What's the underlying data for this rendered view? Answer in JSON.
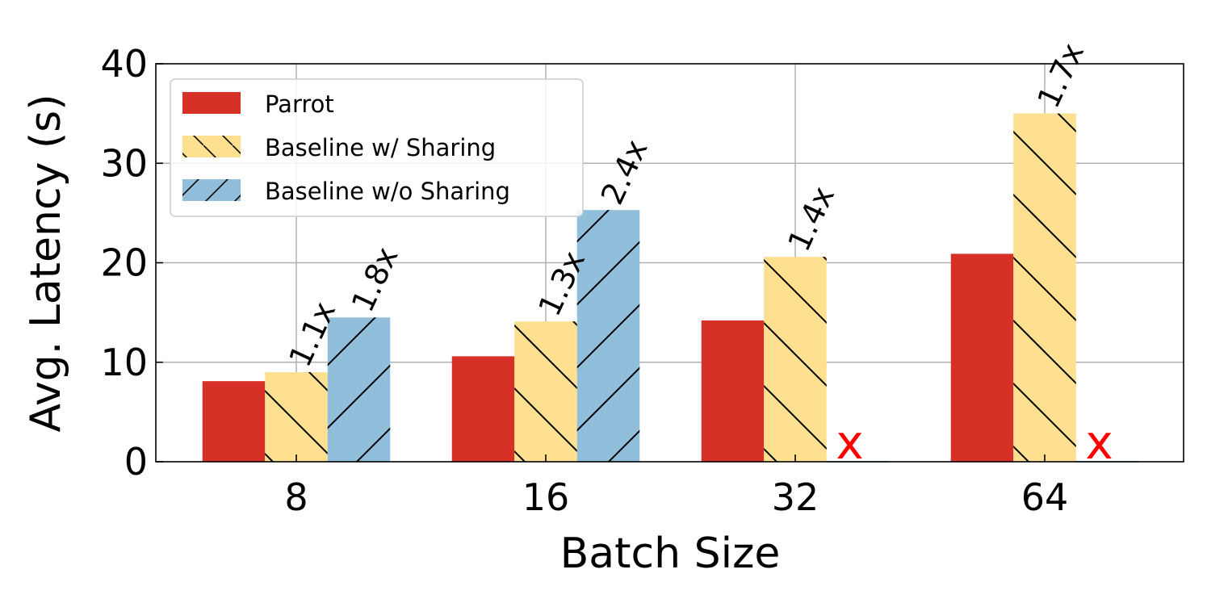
{
  "chart_data": {
    "type": "bar",
    "xlabel": "Batch Size",
    "ylabel": "Avg. Latency (s)",
    "ylim": [
      0,
      40
    ],
    "yticks": [
      "0",
      "10",
      "20",
      "30",
      "40"
    ],
    "grid": true,
    "legend_position": "top-left",
    "categories": [
      "8",
      "16",
      "32",
      "64"
    ],
    "series": [
      {
        "name": "Parrot",
        "color": "#d73027",
        "hatch": "none",
        "values": [
          8.1,
          10.6,
          14.2,
          20.9
        ]
      },
      {
        "name": "Baseline w/ Sharing",
        "color": "#fee090",
        "hatch": "backslash",
        "values": [
          9.0,
          14.1,
          20.6,
          35.0
        ]
      },
      {
        "name": "Baseline w/o Sharing",
        "color": "#91bfdb",
        "hatch": "slash",
        "values": [
          14.5,
          25.3,
          null,
          null
        ]
      }
    ],
    "annotations": {
      "speedups": [
        {
          "series": 1,
          "category": 0,
          "text": "1.1x"
        },
        {
          "series": 2,
          "category": 0,
          "text": "1.8x"
        },
        {
          "series": 1,
          "category": 1,
          "text": "1.3x"
        },
        {
          "series": 2,
          "category": 1,
          "text": "2.4x"
        },
        {
          "series": 1,
          "category": 2,
          "text": "1.4x"
        },
        {
          "series": 1,
          "category": 3,
          "text": "1.7x"
        }
      ],
      "failures": [
        {
          "series": 2,
          "category": 2,
          "text": "x"
        },
        {
          "series": 2,
          "category": 3,
          "text": "x"
        }
      ]
    }
  }
}
